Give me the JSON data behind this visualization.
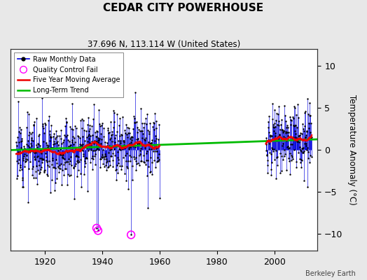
{
  "title": "CEDAR CITY POWERHOUSE",
  "subtitle": "37.696 N, 113.114 W (United States)",
  "ylabel": "Temperature Anomaly (°C)",
  "credit": "Berkeley Earth",
  "xlim": [
    1908,
    2015
  ],
  "ylim": [
    -12,
    12
  ],
  "yticks": [
    -10,
    -5,
    0,
    5,
    10
  ],
  "xticks": [
    1920,
    1940,
    1960,
    1980,
    2000
  ],
  "segment1_start": 1910,
  "segment1_end": 1960,
  "segment2_start": 1997,
  "segment2_end": 2013,
  "seed": 12,
  "raw_color": "#0000dd",
  "dot_color": "#000000",
  "ma_color": "#ee0000",
  "trend_color": "#00bb00",
  "qc_color": "#ff00ff",
  "bg_color": "#e8e8e8",
  "plot_bg": "#ffffff",
  "grid_color": "#aaaaaa",
  "noise_std": 2.0,
  "trend_slope": 0.012,
  "trend_ref_year": 1910,
  "figwidth": 5.24,
  "figheight": 4.0,
  "dpi": 100
}
